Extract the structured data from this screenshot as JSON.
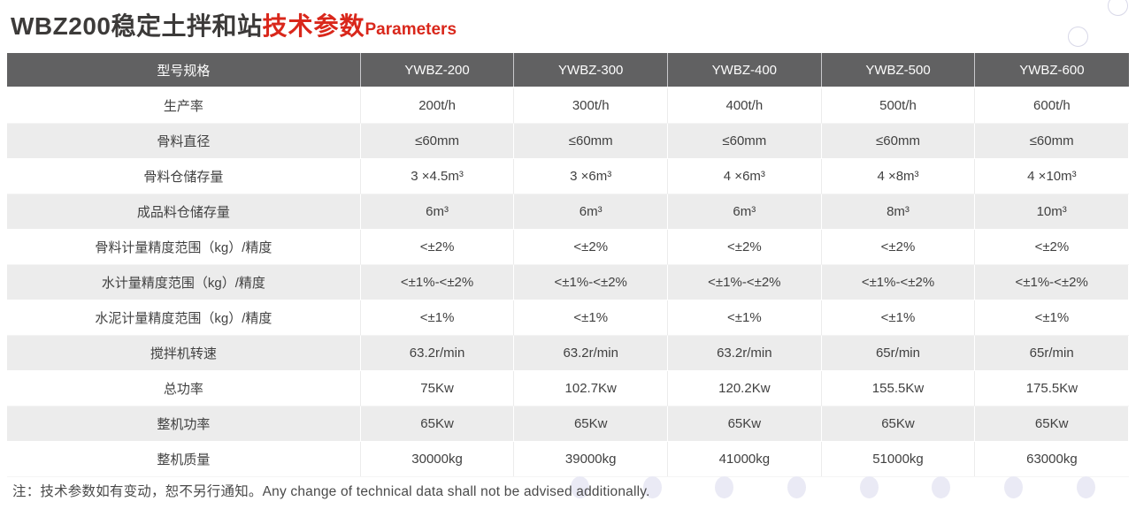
{
  "title": {
    "main": "WBZ200稳定土拌和站",
    "highlight": "技术参数",
    "subtitle": "Parameters"
  },
  "colors": {
    "accent_red": "#d9271b",
    "header_bg": "#616162",
    "header_text": "#fdfdfd",
    "row_alt_bg": "#ececec",
    "body_text": "#414141",
    "watermark": "#e8e8f4"
  },
  "table": {
    "columns": [
      "型号规格",
      "YWBZ-200",
      "YWBZ-300",
      "YWBZ-400",
      "YWBZ-500",
      "YWBZ-600"
    ],
    "rows": [
      {
        "label": "生产率",
        "values": [
          "200t/h",
          "300t/h",
          "400t/h",
          "500t/h",
          "600t/h"
        ]
      },
      {
        "label": "骨料直径",
        "values": [
          "≤60mm",
          "≤60mm",
          "≤60mm",
          "≤60mm",
          "≤60mm"
        ]
      },
      {
        "label": "骨料仓储存量",
        "values": [
          "3 ×4.5m³",
          "3 ×6m³",
          "4 ×6m³",
          "4 ×8m³",
          "4 ×10m³"
        ]
      },
      {
        "label": "成品料仓储存量",
        "values": [
          "6m³",
          "6m³",
          "6m³",
          "8m³",
          "10m³"
        ]
      },
      {
        "label": "骨料计量精度范围（kg）/精度",
        "values": [
          "<±2%",
          "<±2%",
          "<±2%",
          "<±2%",
          "<±2%"
        ]
      },
      {
        "label": "水计量精度范围（kg）/精度",
        "values": [
          "<±1%-<±2%",
          "<±1%-<±2%",
          "<±1%-<±2%",
          "<±1%-<±2%",
          "<±1%-<±2%"
        ]
      },
      {
        "label": "水泥计量精度范围（kg）/精度",
        "values": [
          "<±1%",
          "<±1%",
          "<±1%",
          "<±1%",
          "<±1%"
        ]
      },
      {
        "label": "搅拌机转速",
        "values": [
          "63.2r/min",
          "63.2r/min",
          "63.2r/min",
          "65r/min",
          "65r/min"
        ]
      },
      {
        "label": "总功率",
        "values": [
          "75Kw",
          "102.7Kw",
          "120.2Kw",
          "155.5Kw",
          "175.5Kw"
        ]
      },
      {
        "label": "整机功率",
        "values": [
          "65Kw",
          "65Kw",
          "65Kw",
          "65Kw",
          "65Kw"
        ]
      },
      {
        "label": "整机质量",
        "values": [
          "30000kg",
          "39000kg",
          "41000kg",
          "51000kg",
          "63000kg"
        ]
      }
    ]
  },
  "note": "注：技术参数如有变动，恕不另行通知。Any change of technical data shall not be advised additionally."
}
